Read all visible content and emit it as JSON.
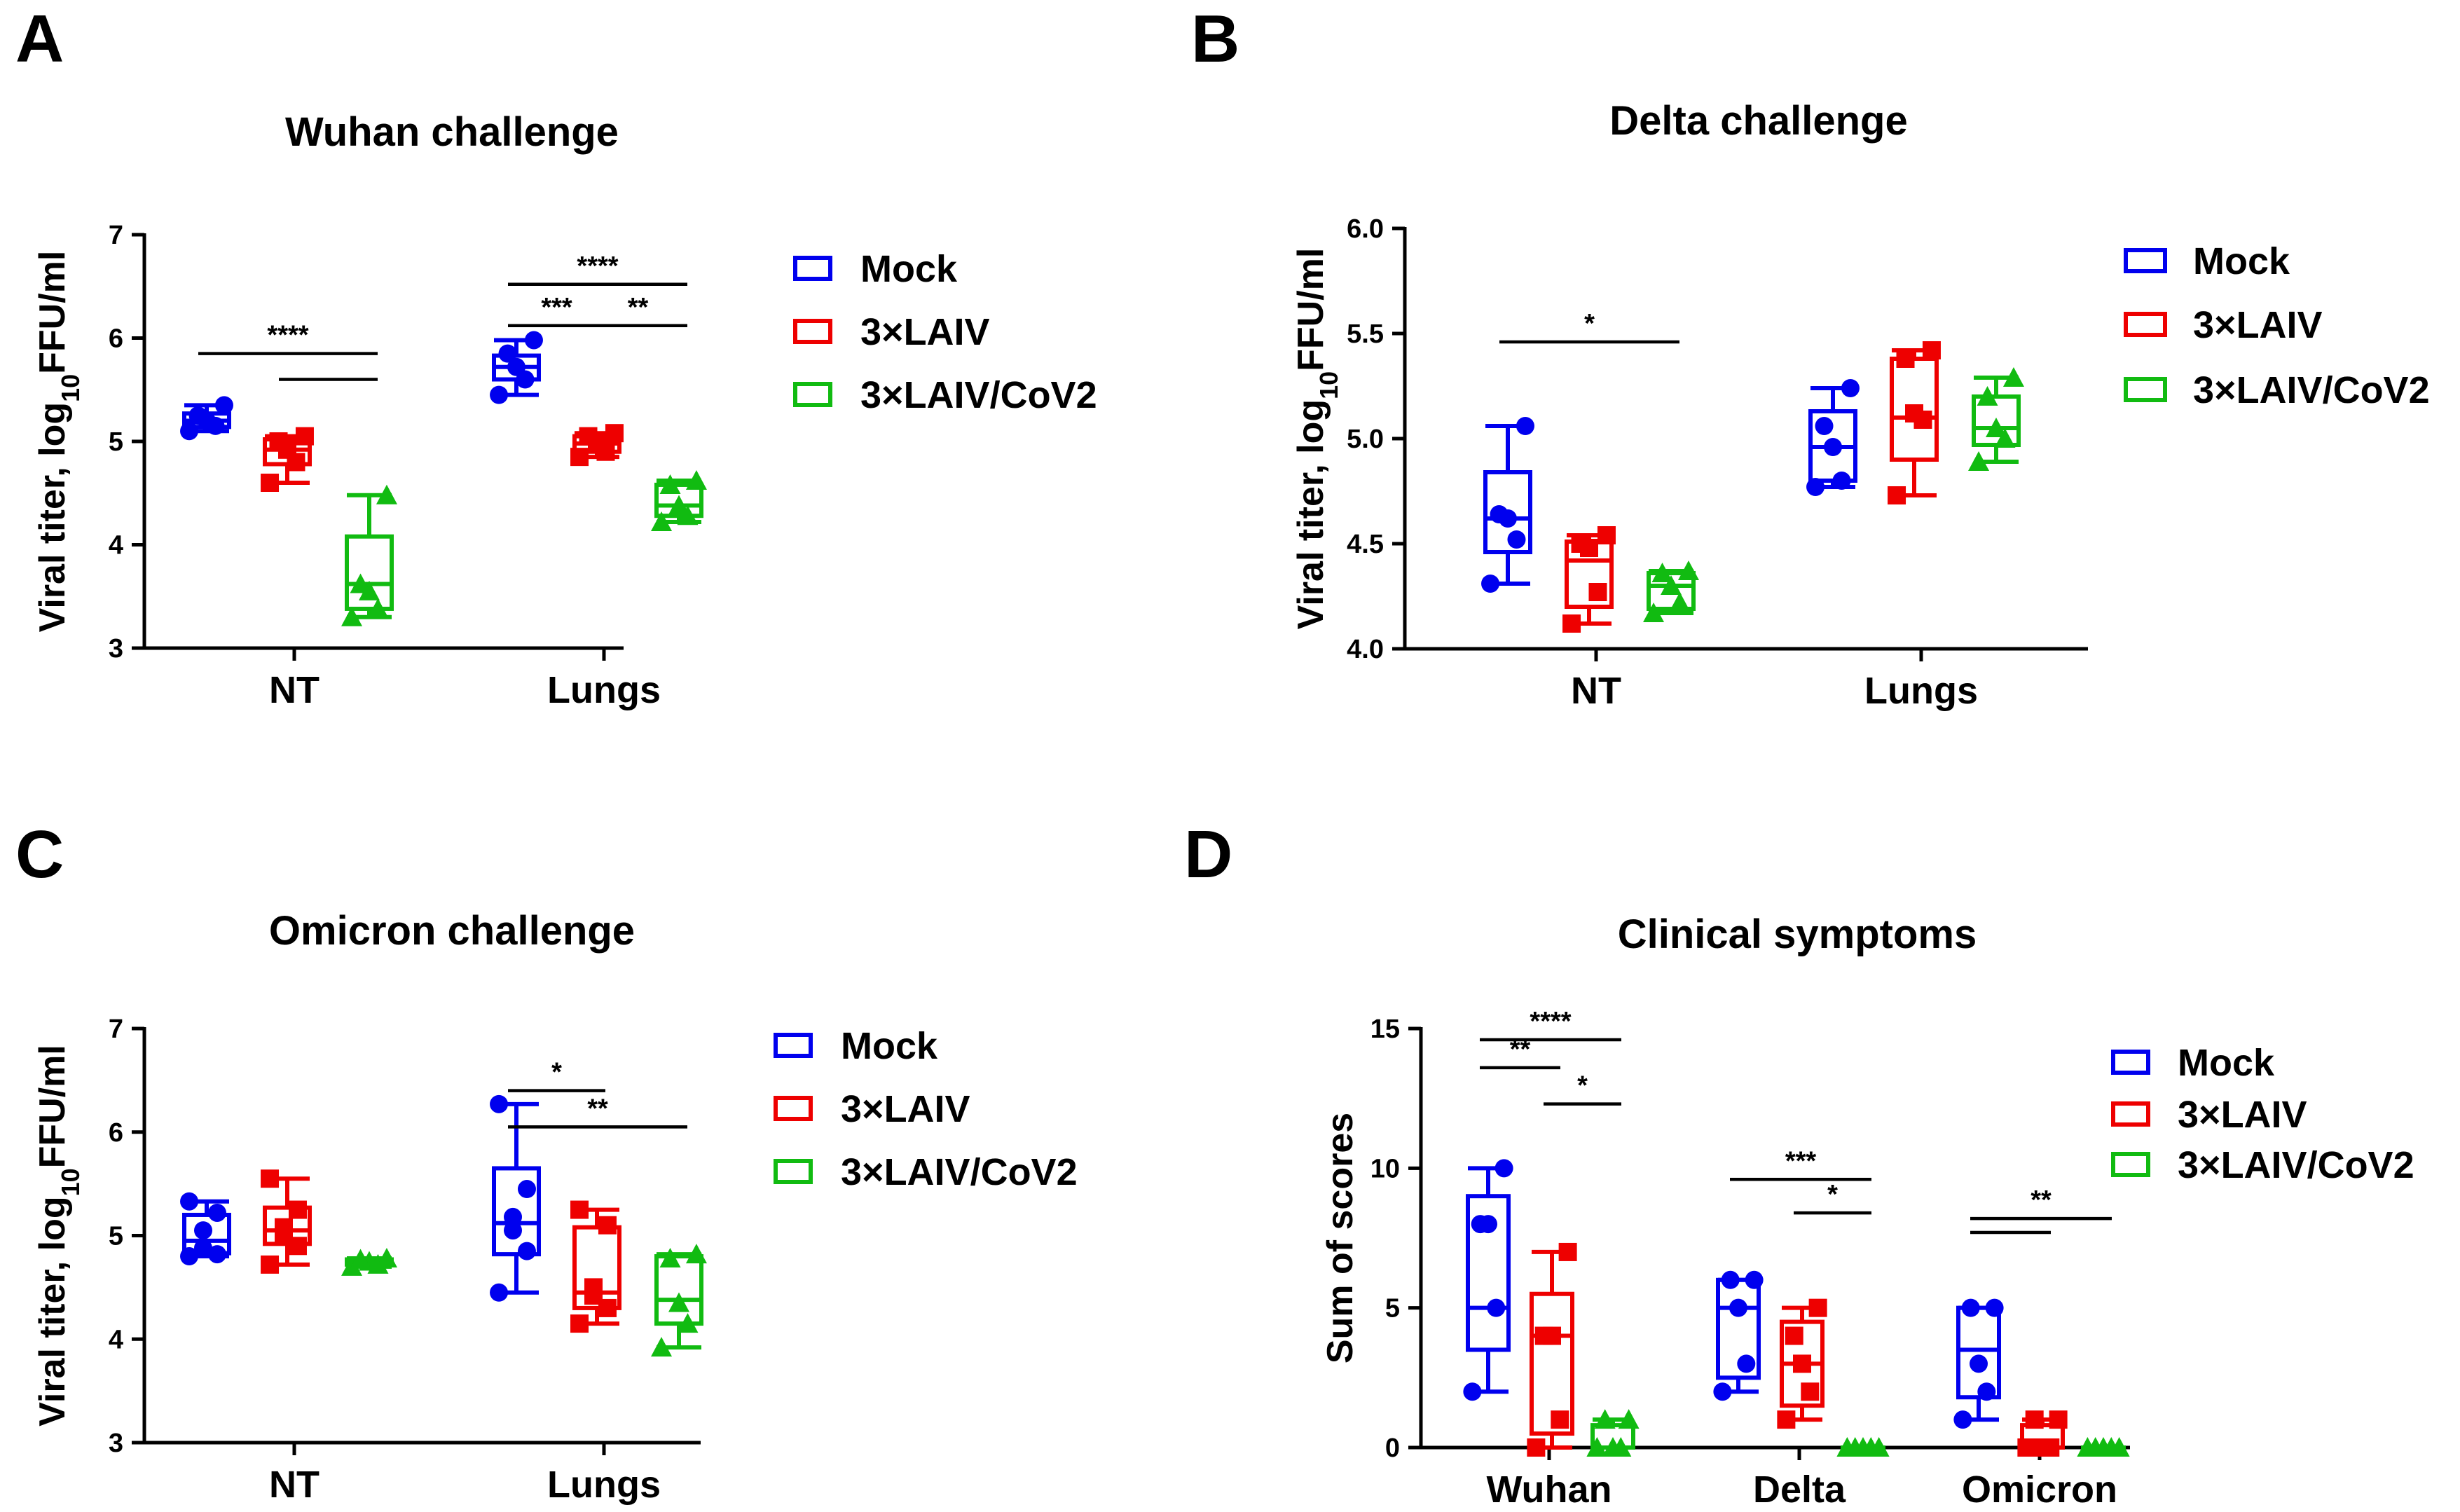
{
  "chart_data": [
    {
      "panel": "A",
      "type": "box",
      "title": "Wuhan challenge",
      "ylabel": "Viral titer, log10FFU/ml",
      "ylabel_parts": [
        "Viral titer, log",
        "10",
        "FFU/ml"
      ],
      "ylim": [
        3,
        7
      ],
      "yticks": [
        "3",
        "4",
        "5",
        "6",
        "7"
      ],
      "categories": [
        "NT",
        "Lungs"
      ],
      "series": [
        {
          "name": "Mock",
          "color": "#0000ee",
          "marker": "circle",
          "groups": [
            {
              "min": 5.1,
              "q1": 5.14,
              "median": 5.2,
              "q3": 5.27,
              "max": 5.35,
              "points": [
                5.1,
                5.15,
                5.2,
                5.25,
                5.35
              ]
            },
            {
              "min": 5.45,
              "q1": 5.6,
              "median": 5.72,
              "q3": 5.83,
              "max": 5.98,
              "points": [
                5.45,
                5.6,
                5.72,
                5.85,
                5.98
              ]
            }
          ]
        },
        {
          "name": "3×LAIV",
          "color": "#ee0000",
          "marker": "square",
          "groups": [
            {
              "min": 4.6,
              "q1": 4.78,
              "median": 4.92,
              "q3": 5.02,
              "max": 5.05,
              "points": [
                4.6,
                4.8,
                4.92,
                5.0,
                5.05
              ]
            },
            {
              "min": 4.85,
              "q1": 4.9,
              "median": 4.98,
              "q3": 5.05,
              "max": 5.08,
              "points": [
                4.85,
                4.9,
                4.98,
                5.05,
                5.08
              ]
            }
          ]
        },
        {
          "name": "3×LAIV/CoV2",
          "color": "#11bb11",
          "marker": "triangle",
          "groups": [
            {
              "min": 3.3,
              "q1": 3.38,
              "median": 3.62,
              "q3": 4.08,
              "max": 4.48,
              "points": [
                3.3,
                3.38,
                3.55,
                3.62,
                4.48
              ]
            },
            {
              "min": 4.22,
              "q1": 4.28,
              "median": 4.38,
              "q3": 4.58,
              "max": 4.62,
              "points": [
                4.22,
                4.28,
                4.38,
                4.58,
                4.62
              ]
            }
          ]
        }
      ],
      "significance": [
        {
          "cat": 0,
          "from": 0,
          "to": 2,
          "y": 5.85,
          "label": "****"
        },
        {
          "cat": 0,
          "from": 1,
          "to": 2,
          "y": 5.6,
          "label": ""
        },
        {
          "cat": 1,
          "from": 0,
          "to": 2,
          "y": 6.52,
          "label": "****"
        },
        {
          "cat": 1,
          "from": 0,
          "to": 1,
          "y": 6.12,
          "label": "***"
        },
        {
          "cat": 1,
          "from": 1,
          "to": 2,
          "y": 6.12,
          "label": "**"
        }
      ]
    },
    {
      "panel": "B",
      "type": "box",
      "title": "Delta challenge",
      "ylabel": "Viral titer, log10FFU/ml",
      "ylabel_parts": [
        "Viral titer, log",
        "10",
        "FFU/ml"
      ],
      "ylim": [
        4.0,
        6.0
      ],
      "yticks": [
        "4.0",
        "4.5",
        "5.0",
        "5.5",
        "6.0"
      ],
      "categories": [
        "NT",
        "Lungs"
      ],
      "series": [
        {
          "name": "Mock",
          "color": "#0000ee",
          "marker": "circle",
          "groups": [
            {
              "min": 4.31,
              "q1": 4.46,
              "median": 4.62,
              "q3": 4.84,
              "max": 5.06,
              "points": [
                4.31,
                4.52,
                4.62,
                4.64,
                5.06
              ]
            },
            {
              "min": 4.77,
              "q1": 4.8,
              "median": 4.96,
              "q3": 5.13,
              "max": 5.24,
              "points": [
                4.77,
                4.8,
                4.96,
                5.06,
                5.24
              ]
            }
          ]
        },
        {
          "name": "3×LAIV",
          "color": "#ee0000",
          "marker": "square",
          "groups": [
            {
              "min": 4.12,
              "q1": 4.2,
              "median": 4.42,
              "q3": 4.51,
              "max": 4.54,
              "points": [
                4.12,
                4.27,
                4.48,
                4.5,
                4.54
              ]
            },
            {
              "min": 4.73,
              "q1": 4.9,
              "median": 5.1,
              "q3": 5.38,
              "max": 5.42,
              "points": [
                4.73,
                5.09,
                5.12,
                5.38,
                5.42
              ]
            }
          ]
        },
        {
          "name": "3×LAIV/CoV2",
          "color": "#11bb11",
          "marker": "triangle",
          "groups": [
            {
              "min": 4.17,
              "q1": 4.19,
              "median": 4.3,
              "q3": 4.36,
              "max": 4.37,
              "points": [
                4.17,
                4.22,
                4.3,
                4.36,
                4.37
              ]
            },
            {
              "min": 4.89,
              "q1": 4.97,
              "median": 5.05,
              "q3": 5.2,
              "max": 5.29,
              "points": [
                4.89,
                5.0,
                5.05,
                5.2,
                5.29
              ]
            }
          ]
        }
      ],
      "significance": [
        {
          "cat": 0,
          "from": 0,
          "to": 2,
          "y": 5.46,
          "label": "*"
        }
      ]
    },
    {
      "panel": "C",
      "type": "box",
      "title": "Omicron challenge",
      "ylabel": "Viral titer, log10FFU/ml",
      "ylabel_parts": [
        "Viral titer, log",
        "10",
        "FFU/ml"
      ],
      "ylim": [
        3,
        7
      ],
      "yticks": [
        "3",
        "4",
        "5",
        "6",
        "7"
      ],
      "categories": [
        "NT",
        "Lungs"
      ],
      "series": [
        {
          "name": "Mock",
          "color": "#0000ee",
          "marker": "circle",
          "groups": [
            {
              "min": 4.8,
              "q1": 4.83,
              "median": 4.95,
              "q3": 5.2,
              "max": 5.33,
              "points": [
                4.8,
                4.82,
                4.88,
                5.05,
                5.22,
                5.33
              ]
            },
            {
              "min": 4.45,
              "q1": 4.82,
              "median": 5.12,
              "q3": 5.65,
              "max": 6.27,
              "points": [
                4.45,
                4.85,
                5.05,
                5.18,
                5.45,
                6.27
              ]
            }
          ]
        },
        {
          "name": "3×LAIV",
          "color": "#ee0000",
          "marker": "square",
          "groups": [
            {
              "min": 4.72,
              "q1": 4.92,
              "median": 5.05,
              "q3": 5.27,
              "max": 5.55,
              "points": [
                4.72,
                4.9,
                5.0,
                5.08,
                5.25,
                5.55
              ]
            },
            {
              "min": 4.15,
              "q1": 4.3,
              "median": 4.45,
              "q3": 5.08,
              "max": 5.25,
              "points": [
                4.15,
                4.3,
                4.42,
                4.5,
                5.1,
                5.25
              ]
            }
          ]
        },
        {
          "name": "3×LAIV/CoV2",
          "color": "#11bb11",
          "marker": "triangle",
          "groups": [
            {
              "min": 4.7,
              "q1": 4.72,
              "median": 4.75,
              "q3": 4.77,
              "max": 4.78,
              "points": [
                4.7,
                4.72,
                4.75,
                4.77,
                4.78
              ]
            },
            {
              "min": 3.92,
              "q1": 4.15,
              "median": 4.38,
              "q3": 4.8,
              "max": 4.82,
              "points": [
                3.92,
                4.15,
                4.35,
                4.78,
                4.82
              ]
            }
          ]
        }
      ],
      "significance": [
        {
          "cat": 1,
          "from": 0,
          "to": 1,
          "y": 6.4,
          "label": "*"
        },
        {
          "cat": 1,
          "from": 0,
          "to": 2,
          "y": 6.05,
          "label": "**"
        }
      ]
    },
    {
      "panel": "D",
      "type": "box",
      "title": "Clinical symptoms",
      "ylabel": "Sum of scores",
      "ylabel_parts": [
        "Sum of scores",
        "",
        ""
      ],
      "ylim": [
        0,
        15
      ],
      "yticks": [
        "0",
        "5",
        "10",
        "15"
      ],
      "categories": [
        "Wuhan",
        "Delta",
        "Omicron"
      ],
      "series": [
        {
          "name": "Mock",
          "color": "#0000ee",
          "marker": "circle",
          "groups": [
            {
              "min": 2,
              "q1": 3.5,
              "median": 5,
              "q3": 9,
              "max": 10,
              "points": [
                2,
                5,
                8,
                8,
                10
              ]
            },
            {
              "min": 2,
              "q1": 2.5,
              "median": 5,
              "q3": 6,
              "max": 6,
              "points": [
                2,
                3,
                5,
                6,
                6
              ]
            },
            {
              "min": 1,
              "q1": 1.8,
              "median": 3.5,
              "q3": 5,
              "max": 5,
              "points": [
                1,
                2,
                3,
                5,
                5
              ]
            }
          ]
        },
        {
          "name": "3×LAIV",
          "color": "#ee0000",
          "marker": "square",
          "groups": [
            {
              "min": 0,
              "q1": 0.5,
              "median": 4,
              "q3": 5.5,
              "max": 7,
              "points": [
                0,
                1,
                4,
                4,
                7
              ]
            },
            {
              "min": 1,
              "q1": 1.5,
              "median": 3,
              "q3": 4.5,
              "max": 5,
              "points": [
                1,
                2,
                3,
                4,
                5
              ]
            },
            {
              "min": 0,
              "q1": 0,
              "median": 0,
              "q3": 0.8,
              "max": 1,
              "points": [
                0,
                0,
                0,
                1,
                1
              ]
            }
          ]
        },
        {
          "name": "3×LAIV/CoV2",
          "color": "#11bb11",
          "marker": "triangle",
          "groups": [
            {
              "min": 0,
              "q1": 0,
              "median": 0,
              "q3": 0.8,
              "max": 1,
              "points": [
                0,
                0,
                0,
                1,
                1
              ]
            },
            {
              "min": 0,
              "q1": 0,
              "median": 0,
              "q3": 0,
              "max": 0,
              "points": [
                0,
                0,
                0,
                0,
                0
              ]
            },
            {
              "min": 0,
              "q1": 0,
              "median": 0,
              "q3": 0,
              "max": 0,
              "points": [
                0,
                0,
                0,
                0,
                0
              ]
            }
          ]
        }
      ],
      "significance": [
        {
          "cat": 0,
          "from": 0,
          "to": 2,
          "y": 14.6,
          "label": "****"
        },
        {
          "cat": 0,
          "from": 0,
          "to": 1,
          "y": 13.6,
          "label": "**"
        },
        {
          "cat": 0,
          "from": 1,
          "to": 2,
          "y": 12.3,
          "label": "*"
        },
        {
          "cat": 1,
          "from": 0,
          "to": 2,
          "y": 9.6,
          "label": "***"
        },
        {
          "cat": 1,
          "from": 1,
          "to": 2,
          "y": 8.4,
          "label": "*"
        },
        {
          "cat": 2,
          "from": 0,
          "to": 2,
          "y": 8.2,
          "label": "**"
        },
        {
          "cat": 2,
          "from": 0,
          "to": 1,
          "y": 7.7,
          "label": ""
        }
      ]
    }
  ]
}
